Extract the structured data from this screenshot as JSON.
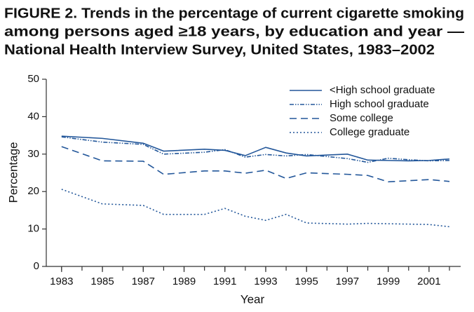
{
  "chart_data": {
    "type": "line",
    "title": [
      "FIGURE 2. Trends in the percentage of current cigarette smoking",
      "among persons aged ≥18 years, by education and year —",
      "National Health Interview Survey, United States, 1983–2002"
    ],
    "x_label": "Year",
    "y_label": "Percentage",
    "x": [
      1983,
      1985,
      1987,
      1988,
      1990,
      1991,
      1992,
      1993,
      1994,
      1995,
      1997,
      1998,
      1999,
      2000,
      2001,
      2002
    ],
    "series": [
      {
        "name": "<High school graduate",
        "color": "#23579a",
        "dash": "solid",
        "values": [
          34.8,
          34.2,
          32.9,
          30.8,
          31.3,
          31.0,
          29.6,
          31.8,
          30.3,
          29.5,
          30.0,
          28.4,
          28.3,
          28.2,
          28.3,
          28.7
        ]
      },
      {
        "name": "High school graduate",
        "color": "#23579a",
        "dash": "dash-dot-dot",
        "values": [
          34.6,
          33.2,
          32.6,
          30.0,
          30.5,
          31.2,
          29.2,
          29.9,
          29.5,
          29.9,
          28.8,
          27.8,
          28.9,
          28.5,
          28.2,
          28.3
        ]
      },
      {
        "name": "Some college",
        "color": "#23579a",
        "dash": "long-dash",
        "values": [
          32.0,
          28.2,
          28.1,
          24.6,
          25.5,
          25.5,
          24.9,
          25.7,
          23.5,
          25.0,
          24.6,
          24.3,
          22.6,
          22.9,
          23.2,
          22.7
        ]
      },
      {
        "name": "College graduate",
        "color": "#23579a",
        "dash": "dotted",
        "values": [
          20.6,
          16.7,
          16.3,
          13.9,
          13.9,
          15.5,
          13.4,
          12.3,
          13.9,
          11.6,
          11.3,
          11.5,
          11.4,
          11.3,
          11.2,
          10.6
        ]
      }
    ],
    "xlim": [
      1982.25,
      2002.55
    ],
    "xticks": [
      1983,
      1985,
      1987,
      1989,
      1991,
      1993,
      1995,
      1997,
      1999,
      2001
    ],
    "xticks_minor": [
      1983,
      1984,
      1985,
      1986,
      1987,
      1988,
      1989,
      1990,
      1991,
      1992,
      1993,
      1994,
      1995,
      1996,
      1997,
      1998,
      1999,
      2000,
      2001,
      2002
    ],
    "ylim": [
      0,
      50
    ],
    "yticks": [
      0,
      10,
      20,
      30,
      40,
      50
    ],
    "legend": "upper right"
  }
}
